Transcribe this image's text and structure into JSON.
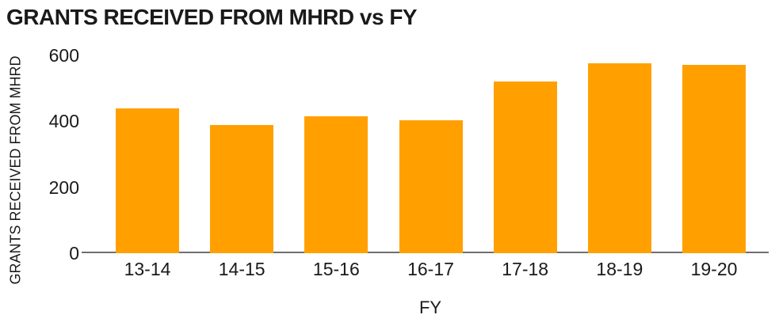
{
  "chart_data": {
    "type": "bar",
    "title": "GRANTS RECEIVED FROM MHRD vs FY",
    "xlabel": "FY",
    "ylabel": "GRANTS RECEIVED FROM MHRD",
    "categories": [
      "13-14",
      "14-15",
      "15-16",
      "16-17",
      "17-18",
      "18-19",
      "19-20"
    ],
    "values": [
      440,
      388,
      416,
      402,
      520,
      576,
      570
    ],
    "ylim": [
      0,
      600
    ],
    "yticks": [
      0,
      200,
      400,
      600
    ],
    "grid": false,
    "legend": false,
    "colors": {
      "bar": "#FFA000",
      "axis_line": "#6e6e6e",
      "text": "#1a1a1a",
      "background": "#ffffff"
    }
  }
}
